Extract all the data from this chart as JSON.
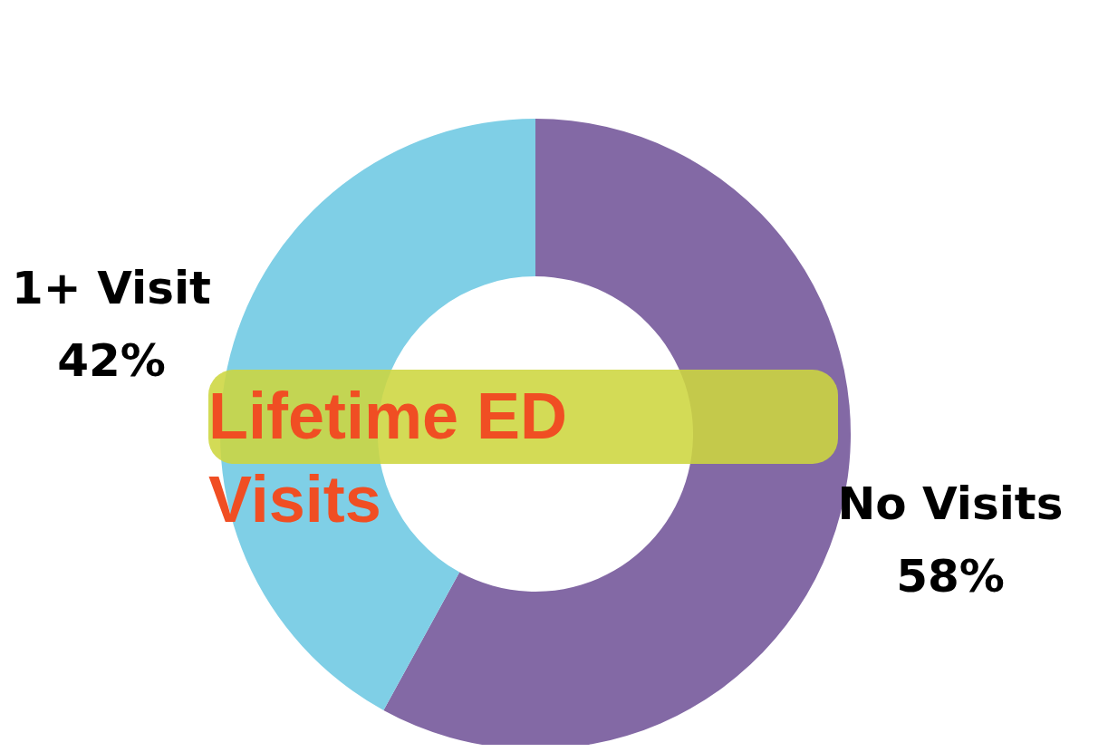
{
  "chart_data": {
    "type": "donut",
    "title": "Lifetime ED Visits",
    "categories": [
      "No Visits",
      "1+ Visit"
    ],
    "values": [
      58,
      42
    ],
    "value_labels": [
      "58%",
      "42%"
    ],
    "colors": [
      "#8369a5",
      "#7fcfe6"
    ]
  }
}
